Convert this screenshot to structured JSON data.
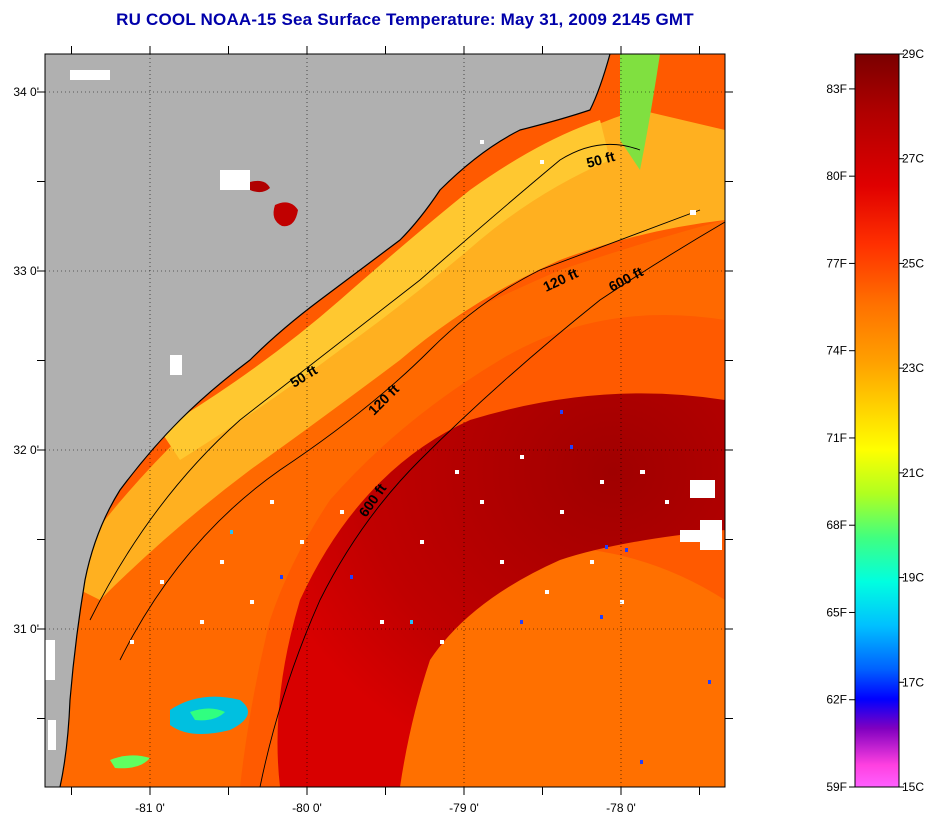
{
  "title": "RU COOL  NOAA-15  Sea Surface Temperature:  May 31, 2009 2145 GMT",
  "map": {
    "lat_labels": [
      "34 0'",
      "33 0'",
      "32 0'",
      "31 0'"
    ],
    "lon_labels": [
      "-81 0'",
      "-80 0'",
      "-79 0'",
      "-78 0'"
    ],
    "lat_values": [
      34,
      33,
      32,
      31
    ],
    "lon_values": [
      -81,
      -80,
      -79,
      -78
    ],
    "contour_labels": [
      "50 ft",
      "50 ft",
      "120 ft",
      "120 ft",
      "600 ft",
      "600 ft"
    ],
    "colors": {
      "land": "#b0b0b0",
      "warm_core": "#b00000",
      "shelf_warm": "#ff6000",
      "nearshore_cool": "#ffc020",
      "cold_patch": "#00c0ff"
    }
  },
  "colorbar": {
    "fahrenheit_labels": [
      "83F",
      "80F",
      "77F",
      "74F",
      "71F",
      "68F",
      "65F",
      "62F",
      "59F"
    ],
    "fahrenheit_values": [
      83,
      80,
      77,
      74,
      71,
      68,
      65,
      62,
      59
    ],
    "celsius_labels": [
      "29C",
      "27C",
      "25C",
      "23C",
      "21C",
      "19C",
      "17C",
      "15C"
    ],
    "celsius_values": [
      29,
      27,
      25,
      23,
      21,
      19,
      17,
      15
    ]
  }
}
